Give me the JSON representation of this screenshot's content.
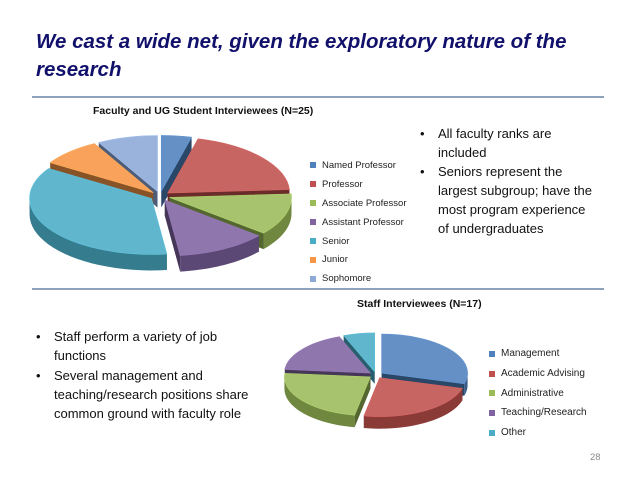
{
  "slide": {
    "title": "We cast a wide net, given the exploratory nature of the research",
    "page_number": "28"
  },
  "faculty_notes": [
    "All faculty ranks are included",
    "Seniors represent the largest subgroup; have the most program experience of undergraduates"
  ],
  "staff_notes": [
    "Staff perform a variety of job functions",
    "Several management and teaching/research positions share common ground with faculty role"
  ],
  "chart_data": [
    {
      "type": "pie",
      "style": "3d exploded",
      "title": "Faculty and UG Student Interviewees (N=25)",
      "total": 25,
      "labels": [
        "Named Professor",
        "Professor",
        "Associate Professor",
        "Assistant Professor",
        "Senior",
        "Junior",
        "Sophomore"
      ],
      "values": [
        1,
        5,
        3,
        3,
        9,
        2,
        2
      ],
      "colors": [
        "#4f81bd",
        "#c0504d",
        "#9bbb59",
        "#8064a2",
        "#4bacc6",
        "#f79646",
        "#8da9d8"
      ],
      "legend": "right"
    },
    {
      "type": "pie",
      "style": "3d exploded",
      "title": "Staff Interviewees (N=17)",
      "total": 17,
      "labels": [
        "Management",
        "Academic Advising",
        "Administrative",
        "Teaching/Research",
        "Other"
      ],
      "values": [
        5,
        4,
        4,
        3,
        1
      ],
      "colors": [
        "#4f81bd",
        "#c0504d",
        "#9bbb59",
        "#8064a2",
        "#4bacc6"
      ],
      "legend": "right"
    }
  ]
}
